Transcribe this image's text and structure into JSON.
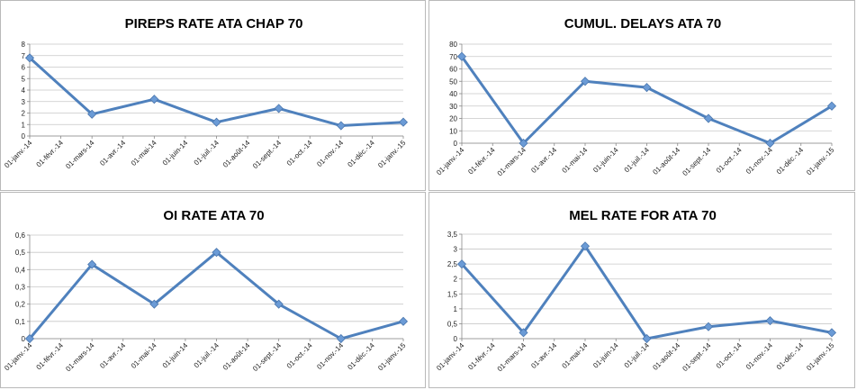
{
  "colors": {
    "line": "#4f81bd",
    "marker": "#6b9bd6",
    "grid": "#c8c8c8",
    "axis": "#888888"
  },
  "chart_data": [
    {
      "type": "line",
      "title": "PIREPS RATE ATA CHAP 70",
      "x_ticks": [
        "01-janv.-14",
        "01-févr.-14",
        "01-mars-14",
        "01-avr.-14",
        "01-mai-14",
        "01-juin-14",
        "01-juil.-14",
        "01-août-14",
        "01-sept.-14",
        "01-oct.-14",
        "01-nov.-14",
        "01-déc.-14",
        "01-janv.-15"
      ],
      "y_ticks": [
        "0",
        "1",
        "2",
        "3",
        "4",
        "5",
        "6",
        "7",
        "8"
      ],
      "ylim": [
        0,
        8
      ],
      "grid": true,
      "points": [
        {
          "x": "01-janv.-14",
          "y": 6.8
        },
        {
          "x": "01-mars-14",
          "y": 1.9
        },
        {
          "x": "01-mai-14",
          "y": 3.2
        },
        {
          "x": "01-juil.-14",
          "y": 1.2
        },
        {
          "x": "01-sept.-14",
          "y": 2.4
        },
        {
          "x": "01-nov.-14",
          "y": 0.9
        },
        {
          "x": "01-janv.-15",
          "y": 1.2
        }
      ]
    },
    {
      "type": "line",
      "title": "CUMUL. DELAYS ATA 70",
      "x_ticks": [
        "01-janv.-14",
        "01-févr.-14",
        "01-mars-14",
        "01-avr.-14",
        "01-mai-14",
        "01-juin-14",
        "01-juil.-14",
        "01-août-14",
        "01-sept.-14",
        "01-oct.-14",
        "01-nov.-14",
        "01-déc.-14",
        "01-janv.-15"
      ],
      "y_ticks": [
        "0",
        "10",
        "20",
        "30",
        "40",
        "50",
        "60",
        "70",
        "80"
      ],
      "ylim": [
        0,
        80
      ],
      "grid": true,
      "points": [
        {
          "x": "01-janv.-14",
          "y": 70
        },
        {
          "x": "01-mars-14",
          "y": 0
        },
        {
          "x": "01-mai-14",
          "y": 50
        },
        {
          "x": "01-juil.-14",
          "y": 45
        },
        {
          "x": "01-sept.-14",
          "y": 20
        },
        {
          "x": "01-nov.-14",
          "y": 0
        },
        {
          "x": "01-janv.-15",
          "y": 30
        }
      ]
    },
    {
      "type": "line",
      "title": "OI RATE ATA 70",
      "x_ticks": [
        "01-janv.-14",
        "01-févr.-14",
        "01-mars-14",
        "01-avr.-14",
        "01-mai-14",
        "01-juin-14",
        "01-juil.-14",
        "01-août-14",
        "01-sept.-14",
        "01-oct.-14",
        "01-nov.-14",
        "01-déc.-14",
        "01-janv.-15"
      ],
      "y_ticks": [
        "0",
        "0,1",
        "0,2",
        "0,3",
        "0,4",
        "0,5",
        "0,6"
      ],
      "ylim": [
        0,
        0.6
      ],
      "grid": true,
      "points": [
        {
          "x": "01-janv.-14",
          "y": 0
        },
        {
          "x": "01-mars-14",
          "y": 0.43
        },
        {
          "x": "01-mai-14",
          "y": 0.2
        },
        {
          "x": "01-juil.-14",
          "y": 0.5
        },
        {
          "x": "01-sept.-14",
          "y": 0.2
        },
        {
          "x": "01-nov.-14",
          "y": 0
        },
        {
          "x": "01-janv.-15",
          "y": 0.1
        }
      ]
    },
    {
      "type": "line",
      "title": "MEL RATE FOR ATA 70",
      "x_ticks": [
        "01-janv.-14",
        "01-févr.-14",
        "01-mars-14",
        "01-avr.-14",
        "01-mai-14",
        "01-juin-14",
        "01-juil.-14",
        "01-août-14",
        "01-sept.-14",
        "01-oct.-14",
        "01-nov.-14",
        "01-déc.-14",
        "01-janv.-15"
      ],
      "y_ticks": [
        "0",
        "0,5",
        "1",
        "1,5",
        "2",
        "2,5",
        "3",
        "3,5"
      ],
      "ylim": [
        0,
        3.5
      ],
      "grid": true,
      "points": [
        {
          "x": "01-janv.-14",
          "y": 2.5
        },
        {
          "x": "01-mars-14",
          "y": 0.2
        },
        {
          "x": "01-mai-14",
          "y": 3.1
        },
        {
          "x": "01-juil.-14",
          "y": 0
        },
        {
          "x": "01-sept.-14",
          "y": 0.4
        },
        {
          "x": "01-nov.-14",
          "y": 0.6
        },
        {
          "x": "01-janv.-15",
          "y": 0.2
        }
      ]
    }
  ]
}
